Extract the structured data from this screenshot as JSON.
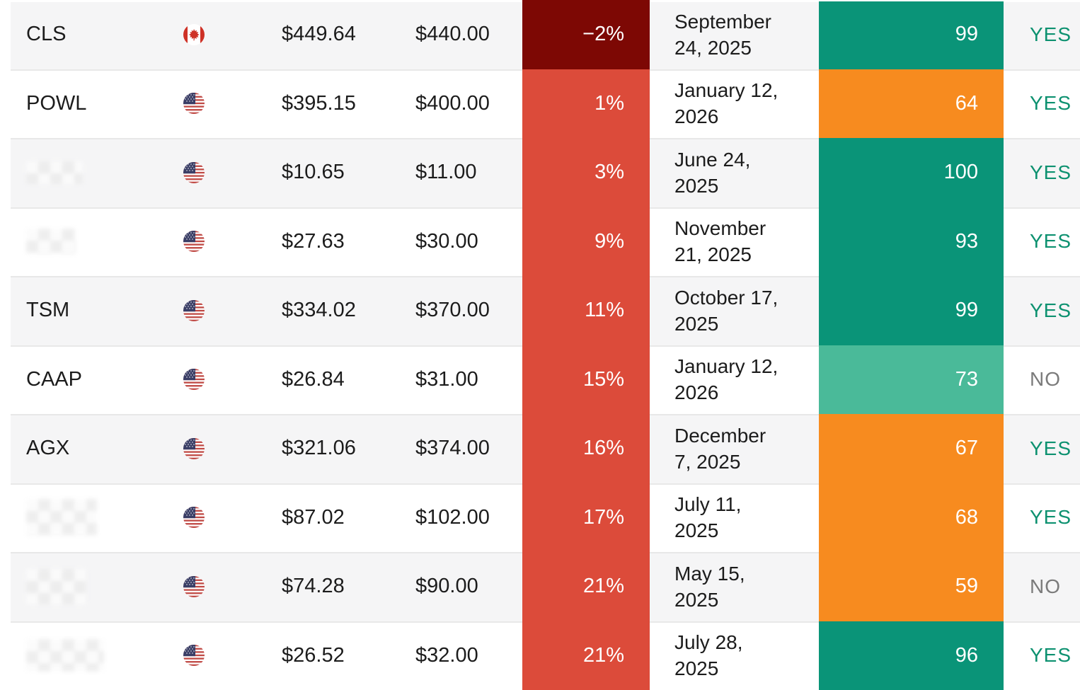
{
  "colors": {
    "red_dark": "#7d0804",
    "red": "#dc4b3a",
    "orange": "#f78b1f",
    "green": "#0a9478",
    "green_light": "#4aba99",
    "yes_text": "#0d9170",
    "no_text": "#7b7b7b",
    "row_alt_bg": "#f5f5f6",
    "row_bg": "#ffffff",
    "separator": "#e8e8e8",
    "text": "#1c1c1c"
  },
  "rows": [
    {
      "ticker": "CLS",
      "redacted": false,
      "flag": "ca",
      "price": "$449.64",
      "target": "$440.00",
      "percent": "−2%",
      "percent_level": "dark",
      "date": "September\n24, 2025",
      "score": "99",
      "score_level": "green",
      "signal": "YES"
    },
    {
      "ticker": "POWL",
      "redacted": false,
      "flag": "us",
      "price": "$395.15",
      "target": "$400.00",
      "percent": "1%",
      "percent_level": "normal",
      "date": "January 12,\n2026",
      "score": "64",
      "score_level": "orange",
      "signal": "YES"
    },
    {
      "ticker": "",
      "redacted": true,
      "flag": "us",
      "price": "$10.65",
      "target": "$11.00",
      "percent": "3%",
      "percent_level": "normal",
      "date": "June 24,\n2025",
      "score": "100",
      "score_level": "green",
      "signal": "YES"
    },
    {
      "ticker": "",
      "redacted": true,
      "flag": "us",
      "price": "$27.63",
      "target": "$30.00",
      "percent": "9%",
      "percent_level": "normal",
      "date": "November\n21, 2025",
      "score": "93",
      "score_level": "green",
      "signal": "YES"
    },
    {
      "ticker": "TSM",
      "redacted": false,
      "flag": "us",
      "price": "$334.02",
      "target": "$370.00",
      "percent": "11%",
      "percent_level": "normal",
      "date": "October 17,\n2025",
      "score": "99",
      "score_level": "green",
      "signal": "YES"
    },
    {
      "ticker": "CAAP",
      "redacted": false,
      "flag": "us",
      "price": "$26.84",
      "target": "$31.00",
      "percent": "15%",
      "percent_level": "normal",
      "date": "January 12,\n2026",
      "score": "73",
      "score_level": "green_light",
      "signal": "NO"
    },
    {
      "ticker": "AGX",
      "redacted": false,
      "flag": "us",
      "price": "$321.06",
      "target": "$374.00",
      "percent": "16%",
      "percent_level": "normal",
      "date": "December\n7, 2025",
      "score": "67",
      "score_level": "orange",
      "signal": "YES"
    },
    {
      "ticker": "",
      "redacted": true,
      "flag": "us",
      "price": "$87.02",
      "target": "$102.00",
      "percent": "17%",
      "percent_level": "normal",
      "date": "July 11,\n2025",
      "score": "68",
      "score_level": "orange",
      "signal": "YES"
    },
    {
      "ticker": "",
      "redacted": true,
      "flag": "us",
      "price": "$74.28",
      "target": "$90.00",
      "percent": "21%",
      "percent_level": "normal",
      "date": "May 15,\n2025",
      "score": "59",
      "score_level": "orange",
      "signal": "NO"
    },
    {
      "ticker": "",
      "redacted": true,
      "flag": "us",
      "price": "$26.52",
      "target": "$32.00",
      "percent": "21%",
      "percent_level": "normal",
      "date": "July 28,\n2025",
      "score": "96",
      "score_level": "green",
      "signal": "YES"
    }
  ]
}
